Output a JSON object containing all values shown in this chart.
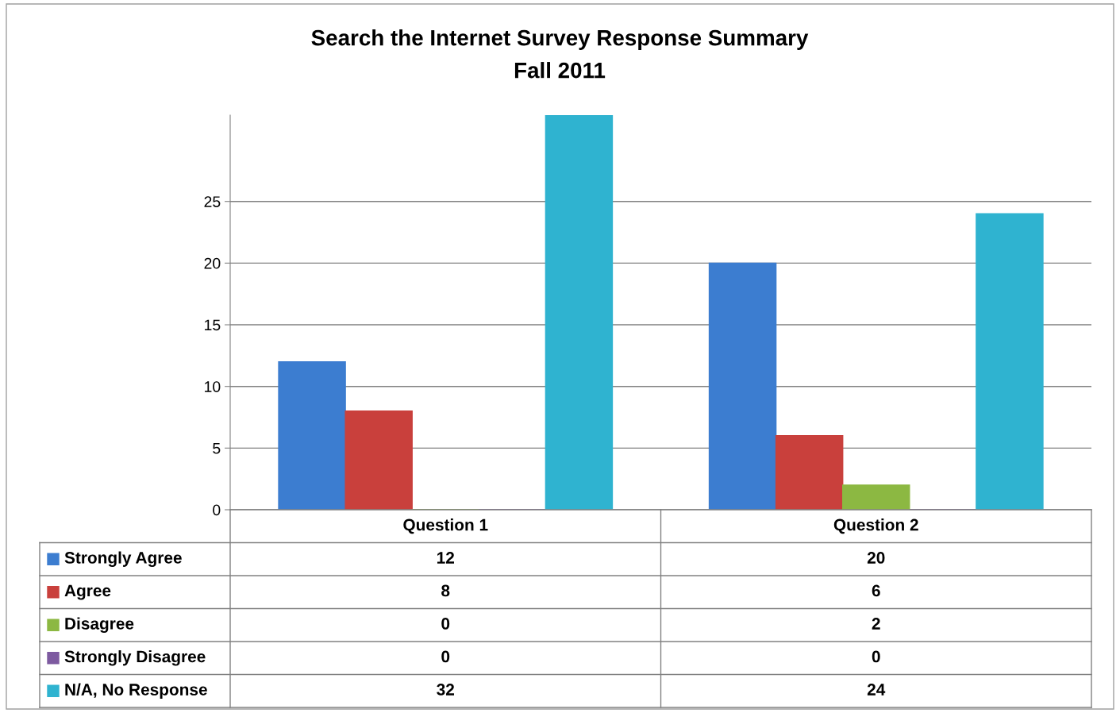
{
  "chart_data": {
    "type": "bar",
    "title": "Search the Internet Survey Response Summary",
    "subtitle": "Fall 2011",
    "categories": [
      "Question 1",
      "Question 2"
    ],
    "series": [
      {
        "name": "Strongly Agree",
        "color": "#3c7dd0",
        "values": [
          12,
          20
        ]
      },
      {
        "name": "Agree",
        "color": "#c9403c",
        "values": [
          8,
          6
        ]
      },
      {
        "name": "Disagree",
        "color": "#8cb842",
        "values": [
          0,
          2
        ]
      },
      {
        "name": "Strongly Disagree",
        "color": "#7d5aa0",
        "values": [
          0,
          0
        ]
      },
      {
        "name": "N/A, No Response",
        "color": "#2fb3d0",
        "values": [
          32,
          24
        ]
      }
    ],
    "ylim": [
      0,
      32
    ],
    "yticks": [
      0,
      5,
      10,
      15,
      20,
      25
    ],
    "grid": "y",
    "data_labels": true,
    "legend": "bottom left"
  }
}
